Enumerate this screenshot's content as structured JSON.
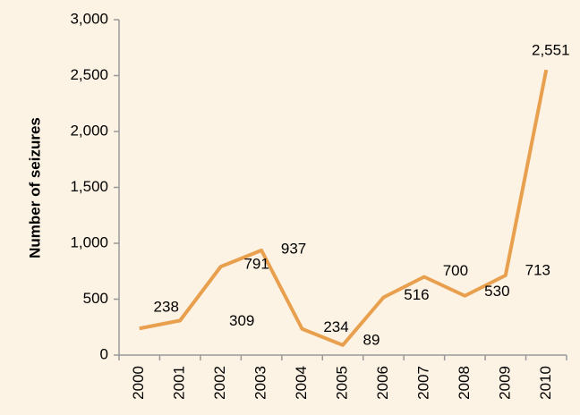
{
  "chart_data": {
    "type": "line",
    "y_label": "Number of seizures",
    "categories": [
      "2000",
      "2001",
      "2002",
      "2003",
      "2004",
      "2005",
      "2006",
      "2007",
      "2008",
      "2009",
      "2010"
    ],
    "series": [
      {
        "color": "#e8a04e",
        "values": [
          238,
          309,
          791,
          937,
          234,
          89,
          516,
          700,
          530,
          713,
          2551
        ],
        "value_labels": [
          "238",
          "309",
          "791",
          "937",
          "234",
          "89",
          "516",
          "700",
          "530",
          "713",
          "2,551"
        ]
      }
    ],
    "ylim": [
      0,
      3000
    ],
    "yticks": [
      0,
      500,
      {
        "value": 1000,
        "label": "1,000"
      },
      {
        "value": 1500,
        "label": "1,500"
      },
      {
        "value": 2000,
        "label": "2,000"
      },
      {
        "value": 2500,
        "label": "2,500"
      },
      {
        "value": 3000,
        "label": "3,000"
      }
    ]
  }
}
